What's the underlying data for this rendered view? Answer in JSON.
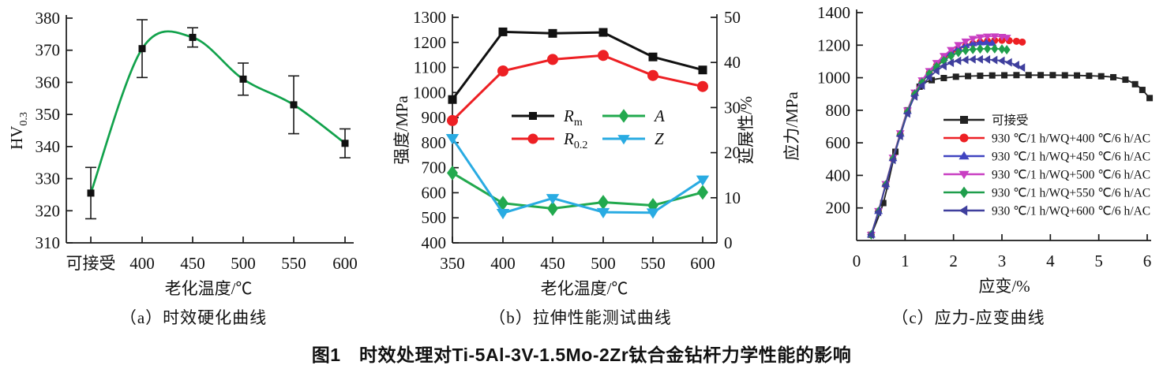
{
  "figure": {
    "caption": "图1　时效处理对Ti-5Al-3V-1.5Mo-2Zr钛合金钻杆力学性能的影响"
  },
  "chart_data": [
    {
      "id": "a",
      "type": "line",
      "subcaption": "（a）时效硬化曲线",
      "xlabel": "老化温度/℃",
      "ylabel": "HV",
      "ylabel_subscript": "0.3",
      "categories": [
        "可接受",
        "400",
        "450",
        "500",
        "550",
        "600"
      ],
      "ylim": [
        310,
        380
      ],
      "ytick_interval": 10,
      "grid": false,
      "series": [
        {
          "name": "HV0.3",
          "line_color": "#12a24c",
          "marker": "square",
          "marker_color": "#111111",
          "smooth": true,
          "values": [
            325.5,
            370.5,
            374,
            361,
            353,
            341
          ],
          "errors": [
            8,
            9,
            3,
            5,
            9,
            4.5
          ]
        }
      ]
    },
    {
      "id": "b",
      "type": "line",
      "subcaption": "（b）拉伸性能测试曲线",
      "xlabel": "老化温度/℃",
      "ylabel_left": "强度/MPa",
      "ylabel_right": "延展性/%",
      "x": [
        350,
        400,
        450,
        500,
        550,
        600
      ],
      "ylim_left": [
        400,
        1300
      ],
      "ytick_interval_left": 100,
      "ylim_right": [
        0,
        50
      ],
      "ytick_interval_right": 10,
      "legend_position": "inside-center",
      "series": [
        {
          "name": "Rm",
          "legend_main": "R",
          "legend_sub": "m",
          "axis": "left",
          "color": "#111111",
          "marker": "square",
          "values": [
            972,
            1242,
            1236,
            1240,
            1142,
            1090
          ]
        },
        {
          "name": "R0.2",
          "legend_main": "R",
          "legend_sub": "0.2",
          "axis": "left",
          "color": "#ed2024",
          "marker": "circle",
          "values": [
            888,
            1086,
            1132,
            1148,
            1068,
            1024
          ]
        },
        {
          "name": "A",
          "legend_main": "A",
          "axis": "right",
          "color": "#22a94e",
          "marker": "diamond",
          "values": [
            15.5,
            8.8,
            7.6,
            9.0,
            8.3,
            11.2
          ]
        },
        {
          "name": "Z",
          "legend_main": "Z",
          "axis": "right",
          "color": "#29abe2",
          "marker": "triangle-down",
          "values": [
            23.2,
            6.6,
            9.9,
            6.8,
            6.7,
            14.0
          ]
        }
      ]
    },
    {
      "id": "c",
      "type": "line",
      "subcaption": "（c）应力-应变曲线",
      "xlabel": "应变/%",
      "ylabel": "应力/MPa",
      "xlim": [
        0,
        6
      ],
      "xtick_interval": 1,
      "ylim": [
        0,
        1400
      ],
      "ytick_interval": 200,
      "first_ytick_label": 200,
      "legend_position": "inside-right",
      "series": [
        {
          "name": "可接受",
          "color": "#222222",
          "marker": "square",
          "points": [
            [
              0.3,
              35
            ],
            [
              0.55,
              230
            ],
            [
              0.8,
              545
            ],
            [
              1.05,
              800
            ],
            [
              1.3,
              945
            ],
            [
              1.55,
              985
            ],
            [
              1.8,
              998
            ],
            [
              2.05,
              1006
            ],
            [
              2.3,
              1010
            ],
            [
              2.55,
              1012
            ],
            [
              2.8,
              1014
            ],
            [
              3.05,
              1015
            ],
            [
              3.3,
              1016
            ],
            [
              3.55,
              1016
            ],
            [
              3.8,
              1016
            ],
            [
              4.05,
              1016
            ],
            [
              4.3,
              1015
            ],
            [
              4.55,
              1014
            ],
            [
              4.8,
              1012
            ],
            [
              5.05,
              1009
            ],
            [
              5.3,
              1003
            ],
            [
              5.55,
              988
            ],
            [
              5.75,
              960
            ],
            [
              5.9,
              925
            ],
            [
              6.05,
              875
            ]
          ]
        },
        {
          "name": "930 ℃/1 h/WQ+400 ℃/6 h/AC",
          "color": "#ed2024",
          "marker": "circle",
          "points": [
            [
              0.3,
              35
            ],
            [
              0.45,
              180
            ],
            [
              0.6,
              340
            ],
            [
              0.75,
              500
            ],
            [
              0.9,
              650
            ],
            [
              1.05,
              790
            ],
            [
              1.2,
              900
            ],
            [
              1.35,
              975
            ],
            [
              1.5,
              1030
            ],
            [
              1.65,
              1075
            ],
            [
              1.8,
              1115
            ],
            [
              1.95,
              1148
            ],
            [
              2.1,
              1175
            ],
            [
              2.25,
              1196
            ],
            [
              2.4,
              1210
            ],
            [
              2.55,
              1220
            ],
            [
              2.7,
              1226
            ],
            [
              2.85,
              1229
            ],
            [
              3.0,
              1230
            ],
            [
              3.15,
              1228
            ],
            [
              3.3,
              1224
            ],
            [
              3.42,
              1219
            ]
          ]
        },
        {
          "name": "930 ℃/1 h/WQ+450 ℃/6 h/AC",
          "color": "#4044c0",
          "marker": "triangle-up",
          "points": [
            [
              0.3,
              35
            ],
            [
              0.45,
              180
            ],
            [
              0.6,
              345
            ],
            [
              0.75,
              505
            ],
            [
              0.9,
              655
            ],
            [
              1.05,
              795
            ],
            [
              1.2,
              905
            ],
            [
              1.35,
              980
            ],
            [
              1.5,
              1035
            ],
            [
              1.65,
              1082
            ],
            [
              1.8,
              1122
            ],
            [
              1.95,
              1156
            ],
            [
              2.1,
              1182
            ],
            [
              2.25,
              1200
            ],
            [
              2.4,
              1211
            ],
            [
              2.55,
              1216
            ],
            [
              2.68,
              1217
            ],
            [
              2.8,
              1213
            ]
          ]
        },
        {
          "name": "930 ℃/1 h/WQ+500 ℃/6 h/AC",
          "color": "#c93fc2",
          "marker": "triangle-down",
          "points": [
            [
              0.3,
              35
            ],
            [
              0.45,
              182
            ],
            [
              0.6,
              348
            ],
            [
              0.75,
              510
            ],
            [
              0.9,
              660
            ],
            [
              1.05,
              800
            ],
            [
              1.2,
              910
            ],
            [
              1.35,
              985
            ],
            [
              1.5,
              1042
            ],
            [
              1.65,
              1092
            ],
            [
              1.8,
              1135
            ],
            [
              1.95,
              1172
            ],
            [
              2.1,
              1202
            ],
            [
              2.25,
              1224
            ],
            [
              2.4,
              1240
            ],
            [
              2.55,
              1249
            ],
            [
              2.7,
              1254
            ],
            [
              2.85,
              1255
            ],
            [
              3.0,
              1252
            ],
            [
              3.1,
              1247
            ]
          ]
        },
        {
          "name": "930 ℃/1 h/WQ+550 ℃/6 h/AC",
          "color": "#1f9e4c",
          "marker": "diamond",
          "points": [
            [
              0.3,
              35
            ],
            [
              0.45,
              178
            ],
            [
              0.6,
              342
            ],
            [
              0.75,
              502
            ],
            [
              0.9,
              650
            ],
            [
              1.05,
              790
            ],
            [
              1.2,
              898
            ],
            [
              1.35,
              970
            ],
            [
              1.5,
              1024
            ],
            [
              1.65,
              1068
            ],
            [
              1.8,
              1105
            ],
            [
              1.95,
              1134
            ],
            [
              2.1,
              1155
            ],
            [
              2.25,
              1168
            ],
            [
              2.4,
              1174
            ],
            [
              2.55,
              1177
            ],
            [
              2.7,
              1178
            ],
            [
              2.85,
              1178
            ],
            [
              3.0,
              1176
            ],
            [
              3.1,
              1172
            ]
          ]
        },
        {
          "name": "930 ℃/1 h/WQ+600 ℃/6 h/AC",
          "color": "#3f3f9d",
          "marker": "triangle-left",
          "points": [
            [
              0.3,
              35
            ],
            [
              0.45,
              175
            ],
            [
              0.6,
              338
            ],
            [
              0.75,
              495
            ],
            [
              0.9,
              642
            ],
            [
              1.05,
              780
            ],
            [
              1.2,
              885
            ],
            [
              1.35,
              952
            ],
            [
              1.5,
              1002
            ],
            [
              1.65,
              1042
            ],
            [
              1.8,
              1072
            ],
            [
              1.95,
              1092
            ],
            [
              2.1,
              1104
            ],
            [
              2.25,
              1110
            ],
            [
              2.4,
              1113
            ],
            [
              2.55,
              1113
            ],
            [
              2.7,
              1112
            ],
            [
              2.85,
              1109
            ],
            [
              3.0,
              1104
            ],
            [
              3.15,
              1094
            ],
            [
              3.3,
              1078
            ],
            [
              3.42,
              1062
            ]
          ]
        }
      ]
    }
  ]
}
